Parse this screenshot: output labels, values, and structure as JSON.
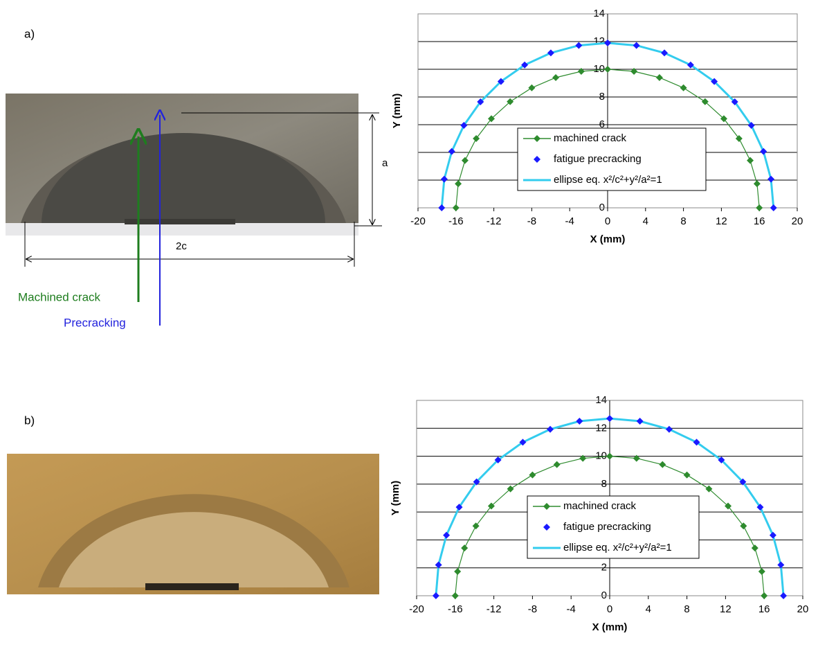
{
  "panel_labels": [
    "a)",
    "b)"
  ],
  "photo_annotations": {
    "depth": "a",
    "width": "2c",
    "machined": "Machined crack",
    "precracking": "Precracking"
  },
  "chart_data": [
    {
      "type": "scatter",
      "xlabel": "X (mm)",
      "ylabel": "Y (mm)",
      "xlim": [
        -20,
        20
      ],
      "xticks": [
        -20,
        -16,
        -12,
        -8,
        -4,
        0,
        4,
        8,
        12,
        16,
        20
      ],
      "ylim": [
        0,
        14
      ],
      "yticks": [
        0,
        2,
        4,
        6,
        8,
        10,
        12,
        14
      ],
      "grid": true,
      "legend": "center",
      "series": [
        {
          "name": "machined crack",
          "color": "#2e8b2e",
          "marker": "diamond",
          "line": true,
          "x": [
            -16,
            -15.76,
            -15.04,
            -13.86,
            -12.26,
            -10.28,
            -8,
            -5.47,
            -2.78,
            0,
            2.78,
            5.47,
            8,
            10.28,
            12.26,
            13.86,
            15.04,
            15.76,
            16
          ],
          "values": [
            0,
            1.74,
            3.42,
            5,
            6.43,
            7.66,
            8.66,
            9.4,
            9.85,
            10,
            9.85,
            9.4,
            8.66,
            7.66,
            6.43,
            5,
            3.42,
            1.74,
            0
          ]
        },
        {
          "name": "fatigue precracking",
          "color": "#1a1aff",
          "marker": "diamond",
          "line": false,
          "x": [
            -17.5,
            -17.23,
            -16.44,
            -15.16,
            -13.41,
            -11.25,
            -8.75,
            -5.99,
            -3.04,
            0,
            3.04,
            5.99,
            8.75,
            11.25,
            13.41,
            15.16,
            16.44,
            17.23,
            17.5
          ],
          "values": [
            0,
            2.07,
            4.07,
            5.95,
            7.65,
            9.12,
            10.31,
            11.18,
            11.72,
            11.9,
            11.72,
            11.18,
            10.31,
            9.12,
            7.65,
            5.95,
            4.07,
            2.07,
            0
          ]
        },
        {
          "name": "ellipse eq. x²/c²+y²/a²=1",
          "color": "#33ccee",
          "marker": "none",
          "line": true,
          "x": [
            -17.5,
            -17.23,
            -16.44,
            -15.16,
            -13.41,
            -11.25,
            -8.75,
            -5.99,
            -3.04,
            0,
            3.04,
            5.99,
            8.75,
            11.25,
            13.41,
            15.16,
            16.44,
            17.23,
            17.5
          ],
          "values": [
            0,
            2.07,
            4.07,
            5.95,
            7.65,
            9.12,
            10.31,
            11.18,
            11.72,
            11.9,
            11.72,
            11.18,
            10.31,
            9.12,
            7.65,
            5.95,
            4.07,
            2.07,
            0
          ]
        }
      ]
    },
    {
      "type": "scatter",
      "xlabel": "X (mm)",
      "ylabel": "Y (mm)",
      "xlim": [
        -20,
        20
      ],
      "xticks": [
        -20,
        -16,
        -12,
        -8,
        -4,
        0,
        4,
        8,
        12,
        16,
        20
      ],
      "ylim": [
        0,
        14
      ],
      "yticks": [
        0,
        2,
        4,
        6,
        8,
        10,
        12,
        14
      ],
      "grid": true,
      "legend": "center",
      "series": [
        {
          "name": "machined crack",
          "color": "#2e8b2e",
          "marker": "diamond",
          "line": true,
          "x": [
            -16,
            -15.76,
            -15.04,
            -13.86,
            -12.26,
            -10.28,
            -8,
            -5.47,
            -2.78,
            0,
            2.78,
            5.47,
            8,
            10.28,
            12.26,
            13.86,
            15.04,
            15.76,
            16
          ],
          "values": [
            0,
            1.74,
            3.42,
            5,
            6.43,
            7.66,
            8.66,
            9.4,
            9.85,
            10,
            9.85,
            9.4,
            8.66,
            7.66,
            6.43,
            5,
            3.42,
            1.74,
            0
          ]
        },
        {
          "name": "fatigue precracking",
          "color": "#1a1aff",
          "marker": "diamond",
          "line": false,
          "x": [
            -18,
            -17.73,
            -16.91,
            -15.59,
            -13.79,
            -11.57,
            -9,
            -6.16,
            -3.13,
            0,
            3.13,
            6.16,
            9,
            11.57,
            13.79,
            15.59,
            16.91,
            17.73,
            18
          ],
          "values": [
            0,
            2.21,
            4.34,
            6.35,
            8.16,
            9.73,
            11,
            11.93,
            12.51,
            12.7,
            12.51,
            11.93,
            11,
            9.73,
            8.16,
            6.35,
            4.34,
            2.21,
            0
          ]
        },
        {
          "name": "ellipse eq. x²/c²+y²/a²=1",
          "color": "#33ccee",
          "marker": "none",
          "line": true,
          "x": [
            -18,
            -17.73,
            -16.91,
            -15.59,
            -13.79,
            -11.57,
            -9,
            -6.16,
            -3.13,
            0,
            3.13,
            6.16,
            9,
            11.57,
            13.79,
            15.59,
            16.91,
            17.73,
            18
          ],
          "values": [
            0,
            2.21,
            4.34,
            6.35,
            8.16,
            9.73,
            11,
            11.93,
            12.51,
            12.7,
            12.51,
            11.93,
            11,
            9.73,
            8.16,
            6.35,
            4.34,
            2.21,
            0
          ]
        }
      ]
    }
  ]
}
